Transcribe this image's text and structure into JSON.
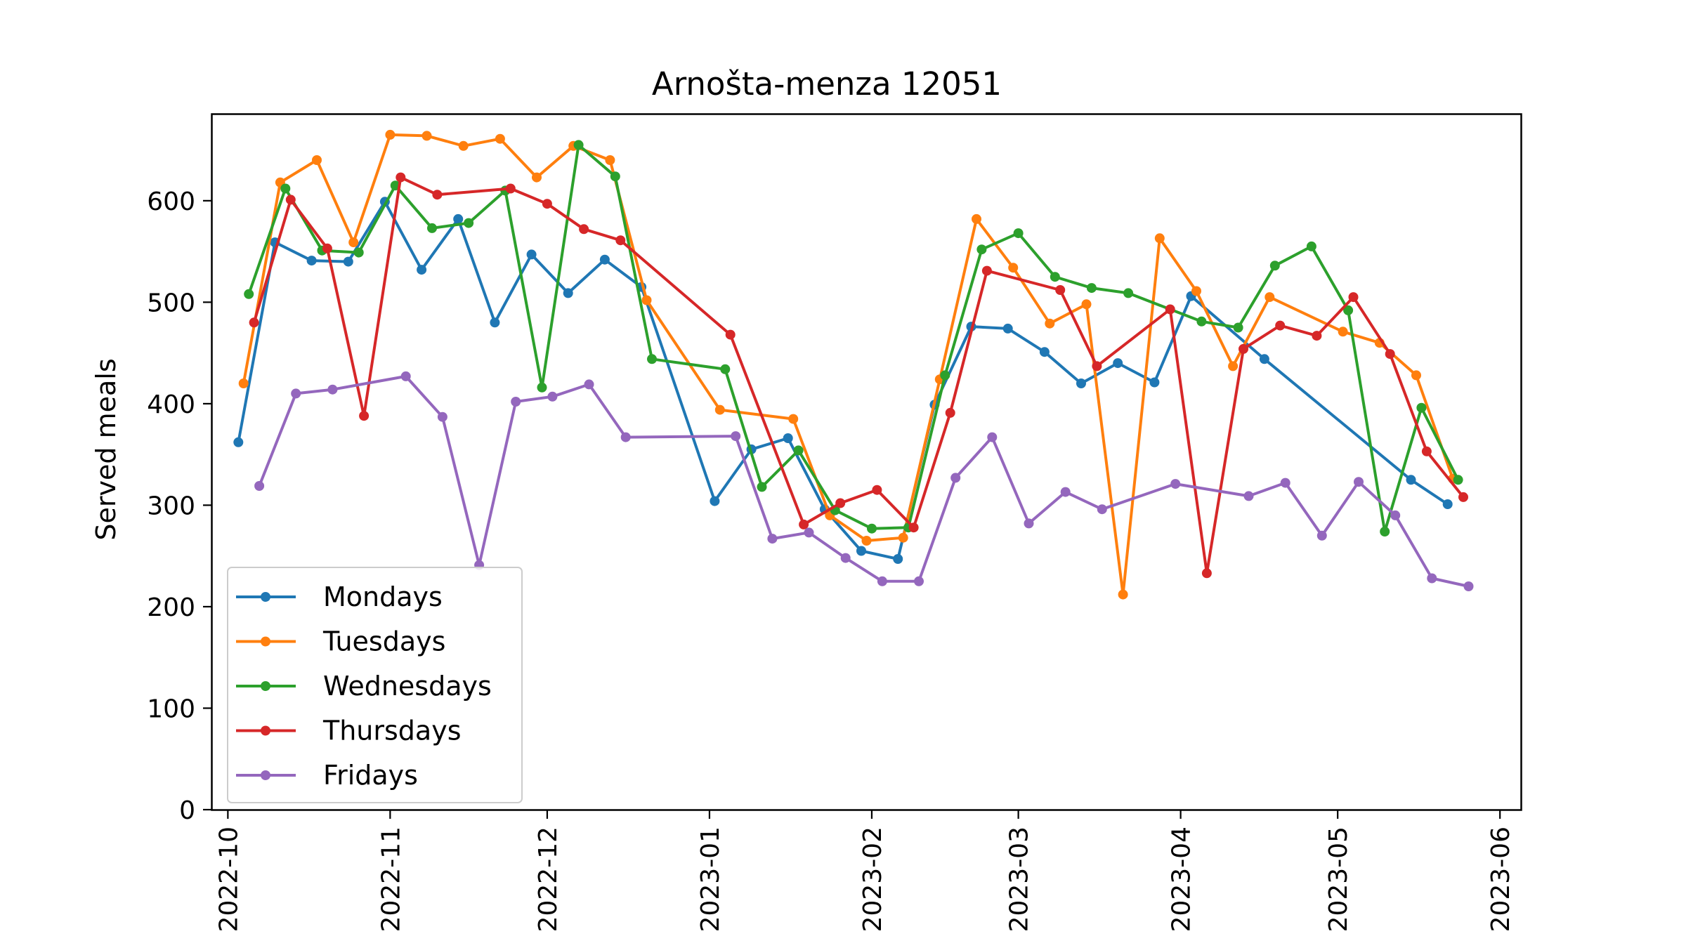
{
  "chart_data": {
    "type": "line",
    "title": "Arnošta-menza 12051",
    "xlabel": "",
    "ylabel": "Served meals",
    "xlim": [
      "2022-09-28",
      "2023-06-05"
    ],
    "ylim": [
      0,
      685
    ],
    "yticks": [
      0,
      100,
      200,
      300,
      400,
      500,
      600
    ],
    "xticks": [
      "2022-10",
      "2022-11",
      "2022-12",
      "2023-01",
      "2023-02",
      "2023-03",
      "2023-04",
      "2023-05",
      "2023-06"
    ],
    "grid": false,
    "legend_position": "lower-left",
    "series": [
      {
        "name": "Mondays",
        "color": "#1f77b4",
        "points": [
          [
            "2022-10-03",
            362
          ],
          [
            "2022-10-10",
            559
          ],
          [
            "2022-10-17",
            541
          ],
          [
            "2022-10-24",
            540
          ],
          [
            "2022-10-31",
            599
          ],
          [
            "2022-11-07",
            532
          ],
          [
            "2022-11-14",
            582
          ],
          [
            "2022-11-21",
            480
          ],
          [
            "2022-11-28",
            547
          ],
          [
            "2022-12-05",
            509
          ],
          [
            "2022-12-12",
            542
          ],
          [
            "2022-12-19",
            515
          ],
          [
            "2023-01-02",
            304
          ],
          [
            "2023-01-09",
            355
          ],
          [
            "2023-01-16",
            366
          ],
          [
            "2023-01-23",
            296
          ],
          [
            "2023-01-30",
            255
          ],
          [
            "2023-02-06",
            247
          ],
          [
            "2023-02-13",
            399
          ],
          [
            "2023-02-20",
            476
          ],
          [
            "2023-02-27",
            474
          ],
          [
            "2023-03-06",
            451
          ],
          [
            "2023-03-13",
            420
          ],
          [
            "2023-03-20",
            440
          ],
          [
            "2023-03-27",
            421
          ],
          [
            "2023-04-03",
            506
          ],
          [
            "2023-04-17",
            444
          ],
          [
            "2023-05-15",
            325
          ],
          [
            "2023-05-22",
            301
          ]
        ]
      },
      {
        "name": "Tuesdays",
        "color": "#ff7f0e",
        "points": [
          [
            "2022-10-04",
            420
          ],
          [
            "2022-10-11",
            618
          ],
          [
            "2022-10-18",
            640
          ],
          [
            "2022-10-25",
            559
          ],
          [
            "2022-11-01",
            665
          ],
          [
            "2022-11-08",
            664
          ],
          [
            "2022-11-15",
            654
          ],
          [
            "2022-11-22",
            661
          ],
          [
            "2022-11-29",
            623
          ],
          [
            "2022-12-06",
            654
          ],
          [
            "2022-12-13",
            640
          ],
          [
            "2022-12-20",
            502
          ],
          [
            "2023-01-03",
            394
          ],
          [
            "2023-01-17",
            385
          ],
          [
            "2023-01-24",
            290
          ],
          [
            "2023-01-31",
            265
          ],
          [
            "2023-02-07",
            268
          ],
          [
            "2023-02-14",
            424
          ],
          [
            "2023-02-21",
            582
          ],
          [
            "2023-02-28",
            534
          ],
          [
            "2023-03-07",
            479
          ],
          [
            "2023-03-14",
            498
          ],
          [
            "2023-03-21",
            212
          ],
          [
            "2023-03-28",
            563
          ],
          [
            "2023-04-04",
            511
          ],
          [
            "2023-04-11",
            437
          ],
          [
            "2023-04-18",
            505
          ],
          [
            "2023-05-02",
            471
          ],
          [
            "2023-05-09",
            460
          ],
          [
            "2023-05-16",
            428
          ],
          [
            "2023-05-23",
            326
          ]
        ]
      },
      {
        "name": "Wednesdays",
        "color": "#2ca02c",
        "points": [
          [
            "2022-10-05",
            508
          ],
          [
            "2022-10-12",
            612
          ],
          [
            "2022-10-19",
            551
          ],
          [
            "2022-10-26",
            549
          ],
          [
            "2022-11-02",
            615
          ],
          [
            "2022-11-09",
            573
          ],
          [
            "2022-11-16",
            578
          ],
          [
            "2022-11-23",
            610
          ],
          [
            "2022-11-30",
            416
          ],
          [
            "2022-12-07",
            655
          ],
          [
            "2022-12-14",
            624
          ],
          [
            "2022-12-21",
            444
          ],
          [
            "2023-01-04",
            434
          ],
          [
            "2023-01-11",
            318
          ],
          [
            "2023-01-18",
            354
          ],
          [
            "2023-01-25",
            295
          ],
          [
            "2023-02-01",
            277
          ],
          [
            "2023-02-08",
            278
          ],
          [
            "2023-02-15",
            428
          ],
          [
            "2023-02-22",
            552
          ],
          [
            "2023-03-01",
            568
          ],
          [
            "2023-03-08",
            525
          ],
          [
            "2023-03-15",
            514
          ],
          [
            "2023-03-22",
            509
          ],
          [
            "2023-04-05",
            481
          ],
          [
            "2023-04-12",
            475
          ],
          [
            "2023-04-19",
            536
          ],
          [
            "2023-04-26",
            555
          ],
          [
            "2023-05-03",
            492
          ],
          [
            "2023-05-10",
            274
          ],
          [
            "2023-05-17",
            396
          ],
          [
            "2023-05-24",
            325
          ]
        ]
      },
      {
        "name": "Thursdays",
        "color": "#d62728",
        "points": [
          [
            "2022-10-06",
            480
          ],
          [
            "2022-10-13",
            601
          ],
          [
            "2022-10-20",
            553
          ],
          [
            "2022-10-27",
            388
          ],
          [
            "2022-11-03",
            623
          ],
          [
            "2022-11-10",
            606
          ],
          [
            "2022-11-24",
            612
          ],
          [
            "2022-12-01",
            597
          ],
          [
            "2022-12-08",
            572
          ],
          [
            "2022-12-15",
            561
          ],
          [
            "2023-01-05",
            468
          ],
          [
            "2023-01-19",
            281
          ],
          [
            "2023-01-26",
            302
          ],
          [
            "2023-02-02",
            315
          ],
          [
            "2023-02-09",
            278
          ],
          [
            "2023-02-16",
            391
          ],
          [
            "2023-02-23",
            531
          ],
          [
            "2023-03-09",
            512
          ],
          [
            "2023-03-16",
            437
          ],
          [
            "2023-03-30",
            493
          ],
          [
            "2023-04-06",
            233
          ],
          [
            "2023-04-13",
            454
          ],
          [
            "2023-04-20",
            477
          ],
          [
            "2023-04-27",
            467
          ],
          [
            "2023-05-04",
            505
          ],
          [
            "2023-05-11",
            449
          ],
          [
            "2023-05-18",
            353
          ],
          [
            "2023-05-25",
            308
          ]
        ]
      },
      {
        "name": "Fridays",
        "color": "#9467bd",
        "points": [
          [
            "2022-10-07",
            319
          ],
          [
            "2022-10-14",
            410
          ],
          [
            "2022-10-21",
            414
          ],
          [
            "2022-11-04",
            427
          ],
          [
            "2022-11-11",
            387
          ],
          [
            "2022-11-18",
            241
          ],
          [
            "2022-11-25",
            402
          ],
          [
            "2022-12-02",
            407
          ],
          [
            "2022-12-09",
            419
          ],
          [
            "2022-12-16",
            367
          ],
          [
            "2023-01-06",
            368
          ],
          [
            "2023-01-13",
            267
          ],
          [
            "2023-01-20",
            273
          ],
          [
            "2023-01-27",
            248
          ],
          [
            "2023-02-03",
            225
          ],
          [
            "2023-02-10",
            225
          ],
          [
            "2023-02-17",
            327
          ],
          [
            "2023-02-24",
            367
          ],
          [
            "2023-03-03",
            282
          ],
          [
            "2023-03-10",
            313
          ],
          [
            "2023-03-17",
            296
          ],
          [
            "2023-03-31",
            321
          ],
          [
            "2023-04-14",
            309
          ],
          [
            "2023-04-21",
            322
          ],
          [
            "2023-04-28",
            270
          ],
          [
            "2023-05-05",
            323
          ],
          [
            "2023-05-12",
            290
          ],
          [
            "2023-05-19",
            228
          ],
          [
            "2023-05-26",
            220
          ]
        ]
      }
    ]
  }
}
